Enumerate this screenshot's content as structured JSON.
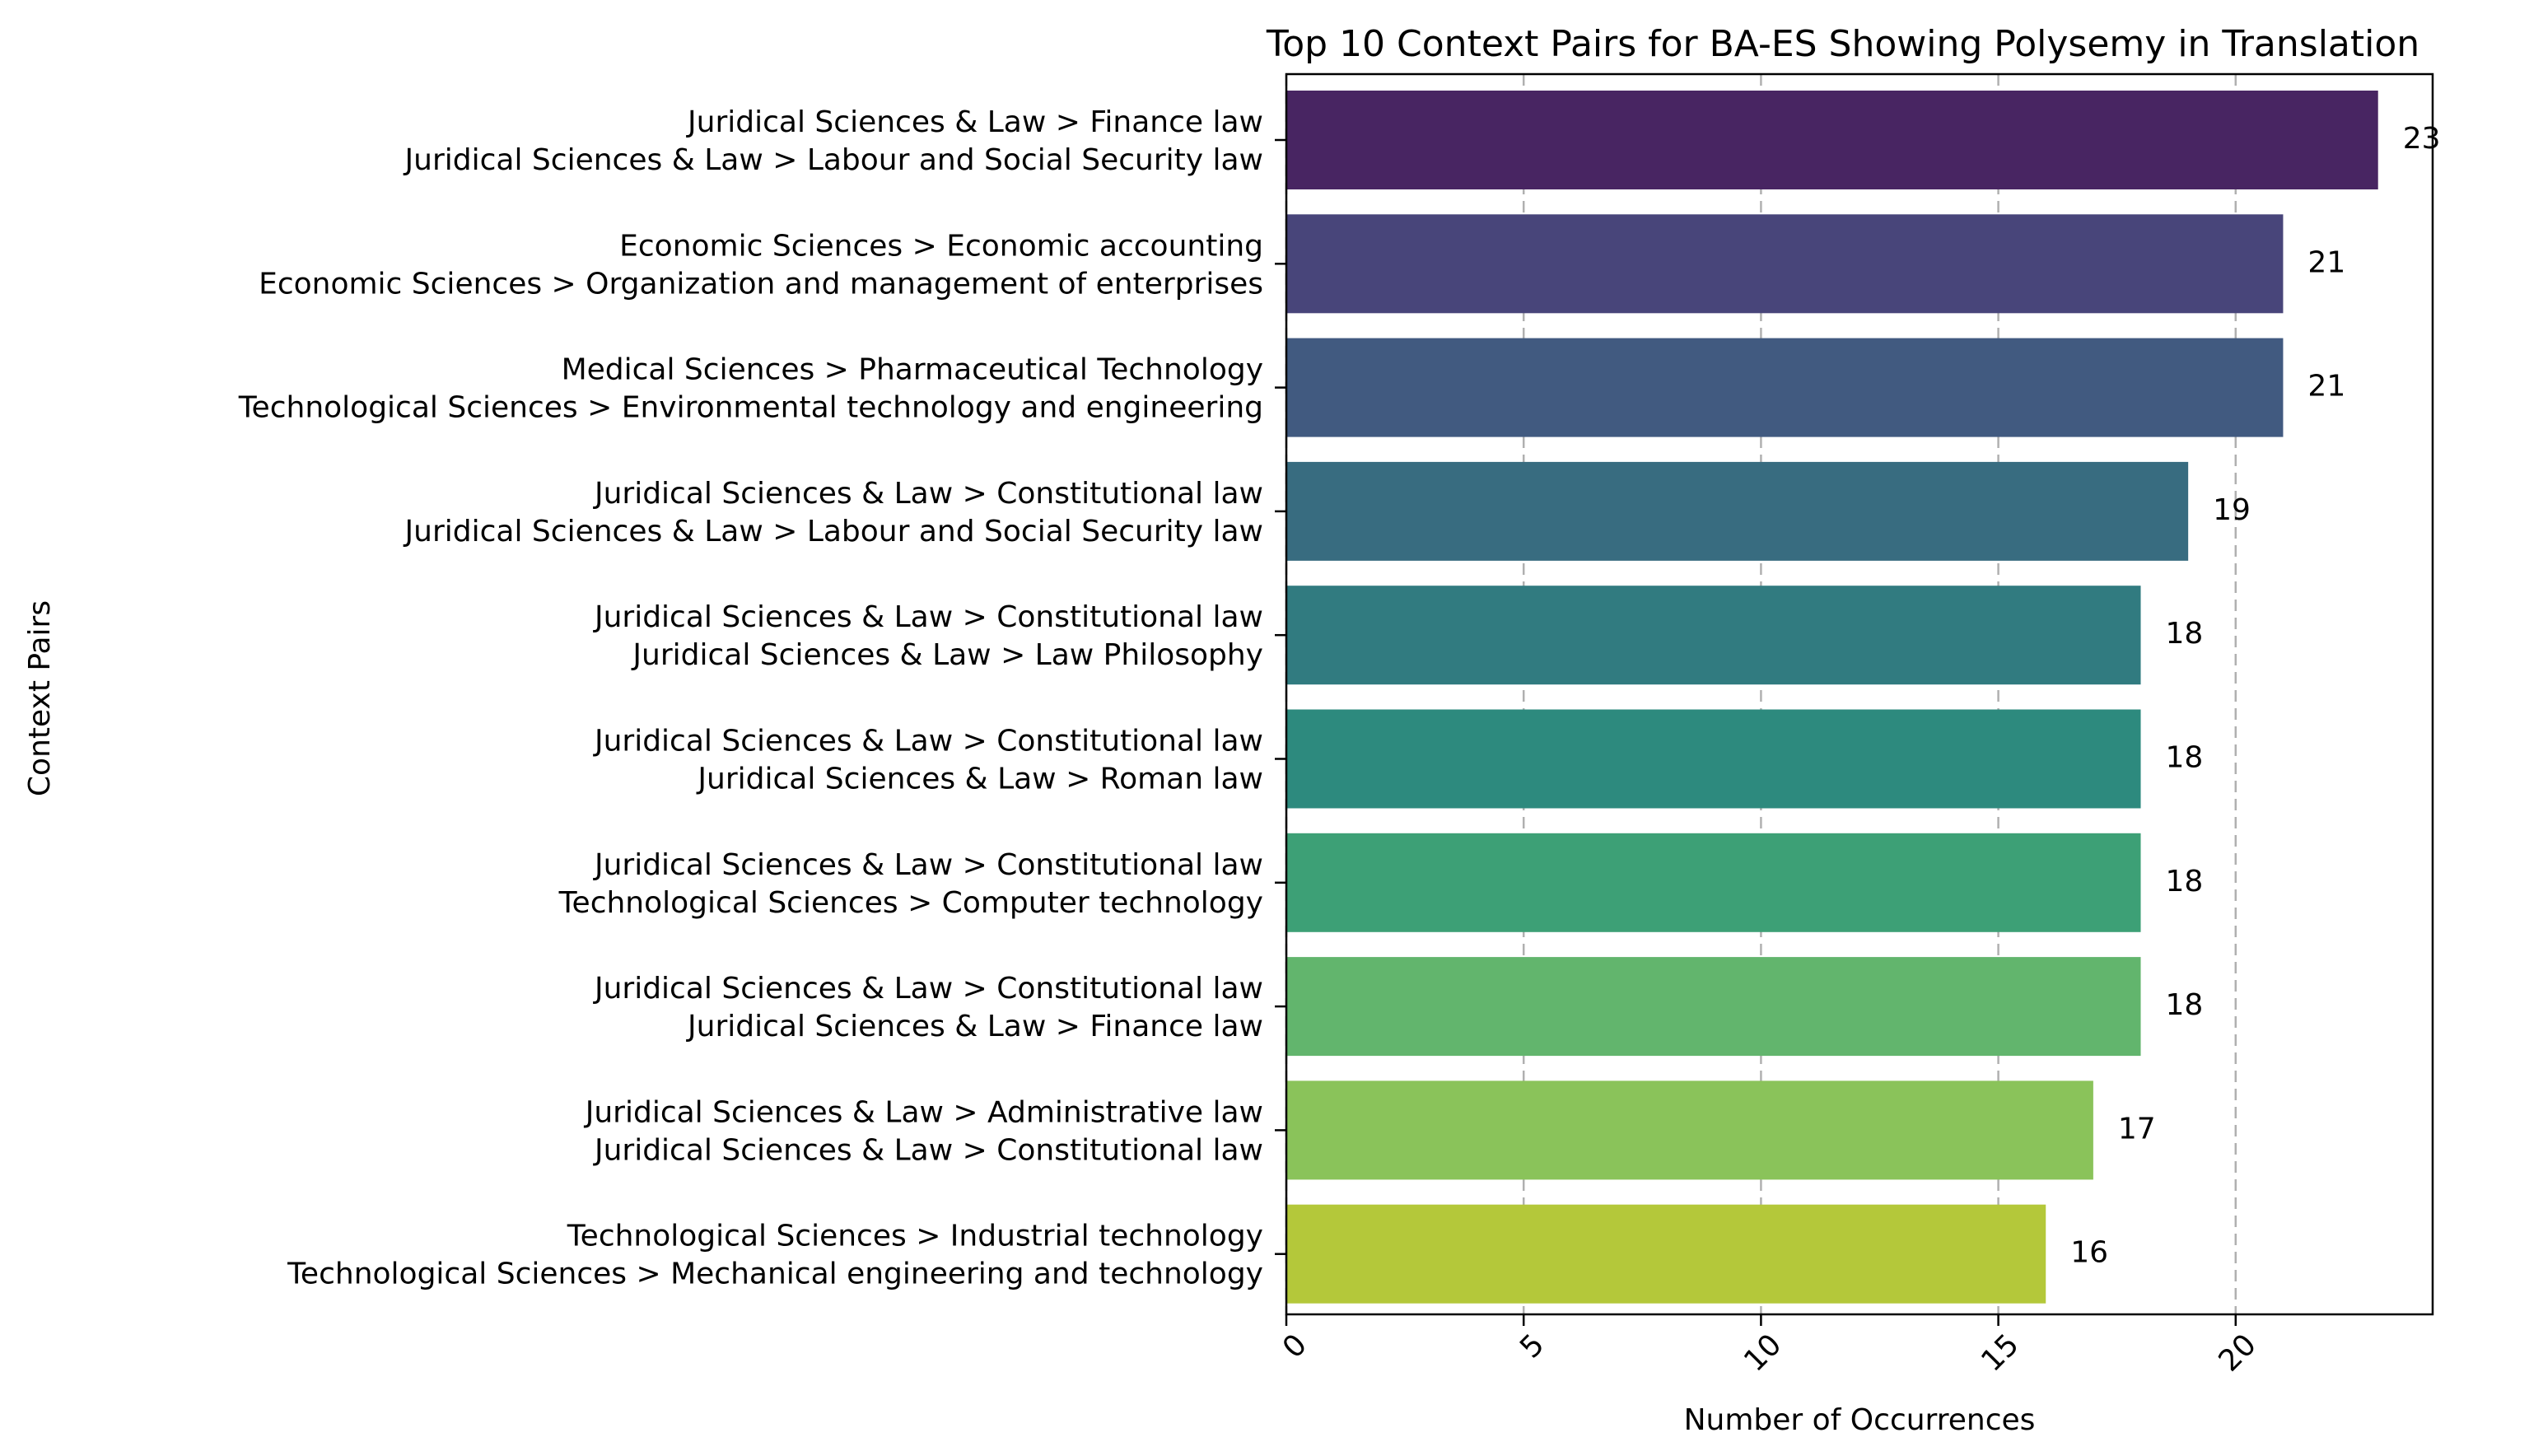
{
  "chart_data": {
    "type": "bar",
    "orientation": "horizontal",
    "title": "Top 10 Context Pairs for BA-ES Showing Polysemy in Translation",
    "xlabel": "Number of Occurrences",
    "ylabel": "Context Pairs",
    "xlim": [
      0,
      24.15
    ],
    "xticks": [
      0,
      5,
      10,
      15,
      20
    ],
    "grid": "x-dashed",
    "categories": [
      [
        "Juridical Sciences & Law > Finance law",
        "Juridical Sciences & Law > Labour and Social Security law"
      ],
      [
        "Economic Sciences > Economic accounting",
        "Economic Sciences > Organization and management of enterprises"
      ],
      [
        "Medical Sciences > Pharmaceutical Technology",
        "Technological Sciences > Environmental technology and engineering"
      ],
      [
        "Juridical Sciences & Law > Constitutional law",
        "Juridical Sciences & Law > Labour and Social Security law"
      ],
      [
        "Juridical Sciences & Law > Constitutional law",
        "Juridical Sciences & Law > Law Philosophy"
      ],
      [
        "Juridical Sciences & Law > Constitutional law",
        "Juridical Sciences & Law > Roman law"
      ],
      [
        "Juridical Sciences & Law > Constitutional law",
        "Technological Sciences > Computer technology"
      ],
      [
        "Juridical Sciences & Law > Constitutional law",
        "Juridical Sciences & Law > Finance law"
      ],
      [
        "Juridical Sciences & Law > Administrative law",
        "Juridical Sciences & Law > Constitutional law"
      ],
      [
        "Technological Sciences > Industrial technology",
        "Technological Sciences > Mechanical engineering and technology"
      ]
    ],
    "values": [
      23,
      21,
      21,
      19,
      18,
      18,
      18,
      18,
      17,
      16
    ],
    "colors": [
      "#482562",
      "#48457a",
      "#415a80",
      "#386c80",
      "#317b80",
      "#2d8a7e",
      "#3da076",
      "#62b56d",
      "#8ac35a",
      "#b4c83a"
    ]
  }
}
